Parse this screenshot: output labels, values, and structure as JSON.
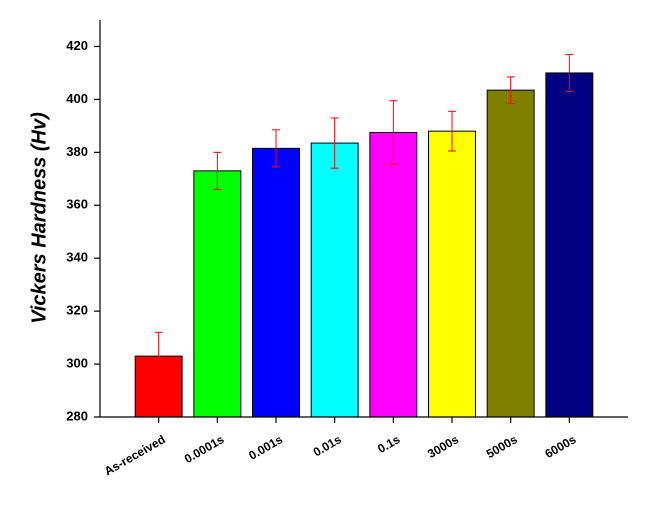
{
  "chart_data": {
    "type": "bar",
    "y_label": "Vickers Hardness (Hv)",
    "categories": [
      "As-received",
      "0.0001s",
      "0.001s",
      "0.01s",
      "0.1s",
      "3000s",
      "5000s",
      "6000s"
    ],
    "values": [
      303,
      373,
      381.5,
      383.5,
      387.5,
      388,
      403.5,
      410
    ],
    "errors": [
      9,
      7,
      7,
      9.5,
      12,
      7.5,
      5,
      7
    ],
    "colors": [
      "#ff0000",
      "#00ff00",
      "#0000ff",
      "#00ffff",
      "#ff00ff",
      "#ffff00",
      "#808000",
      "#000080"
    ],
    "error_color": "#ff0000",
    "ylim": [
      280,
      430
    ],
    "yticks": [
      280,
      300,
      320,
      340,
      360,
      380,
      400,
      420
    ]
  }
}
